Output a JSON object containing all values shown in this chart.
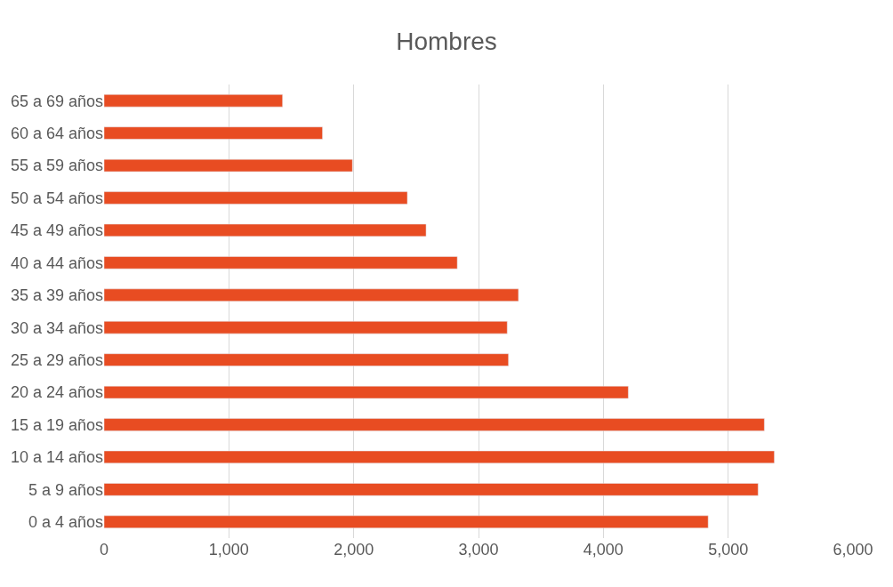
{
  "chart_data": {
    "type": "bar",
    "orientation": "horizontal",
    "title": "Hombres",
    "categories": [
      "65 a 69 años",
      "60 a 64 años",
      "55 a 59 años",
      "50 a 54 años",
      "45 a 49 años",
      "40 a 44 años",
      "35 a 39 años",
      "30 a 34 años",
      "25 a 29 años",
      "20 a 24 años",
      "15 a 19 años",
      "10 a 14 años",
      "5 a 9 años",
      "0 a 4 años"
    ],
    "values": [
      1430,
      1750,
      1990,
      2430,
      2580,
      2830,
      3320,
      3230,
      3240,
      4200,
      5290,
      5370,
      5240,
      4840
    ],
    "color": "#e84c22",
    "xlim": [
      0,
      6000
    ],
    "xticks": [
      {
        "value": 0,
        "label": "0"
      },
      {
        "value": 1000,
        "label": "1,000"
      },
      {
        "value": 2000,
        "label": "2,000"
      },
      {
        "value": 3000,
        "label": "3,000"
      },
      {
        "value": 4000,
        "label": "4,000"
      },
      {
        "value": 5000,
        "label": "5,000"
      },
      {
        "value": 6000,
        "label": "6,000"
      }
    ],
    "grid": "x",
    "legend": false
  }
}
